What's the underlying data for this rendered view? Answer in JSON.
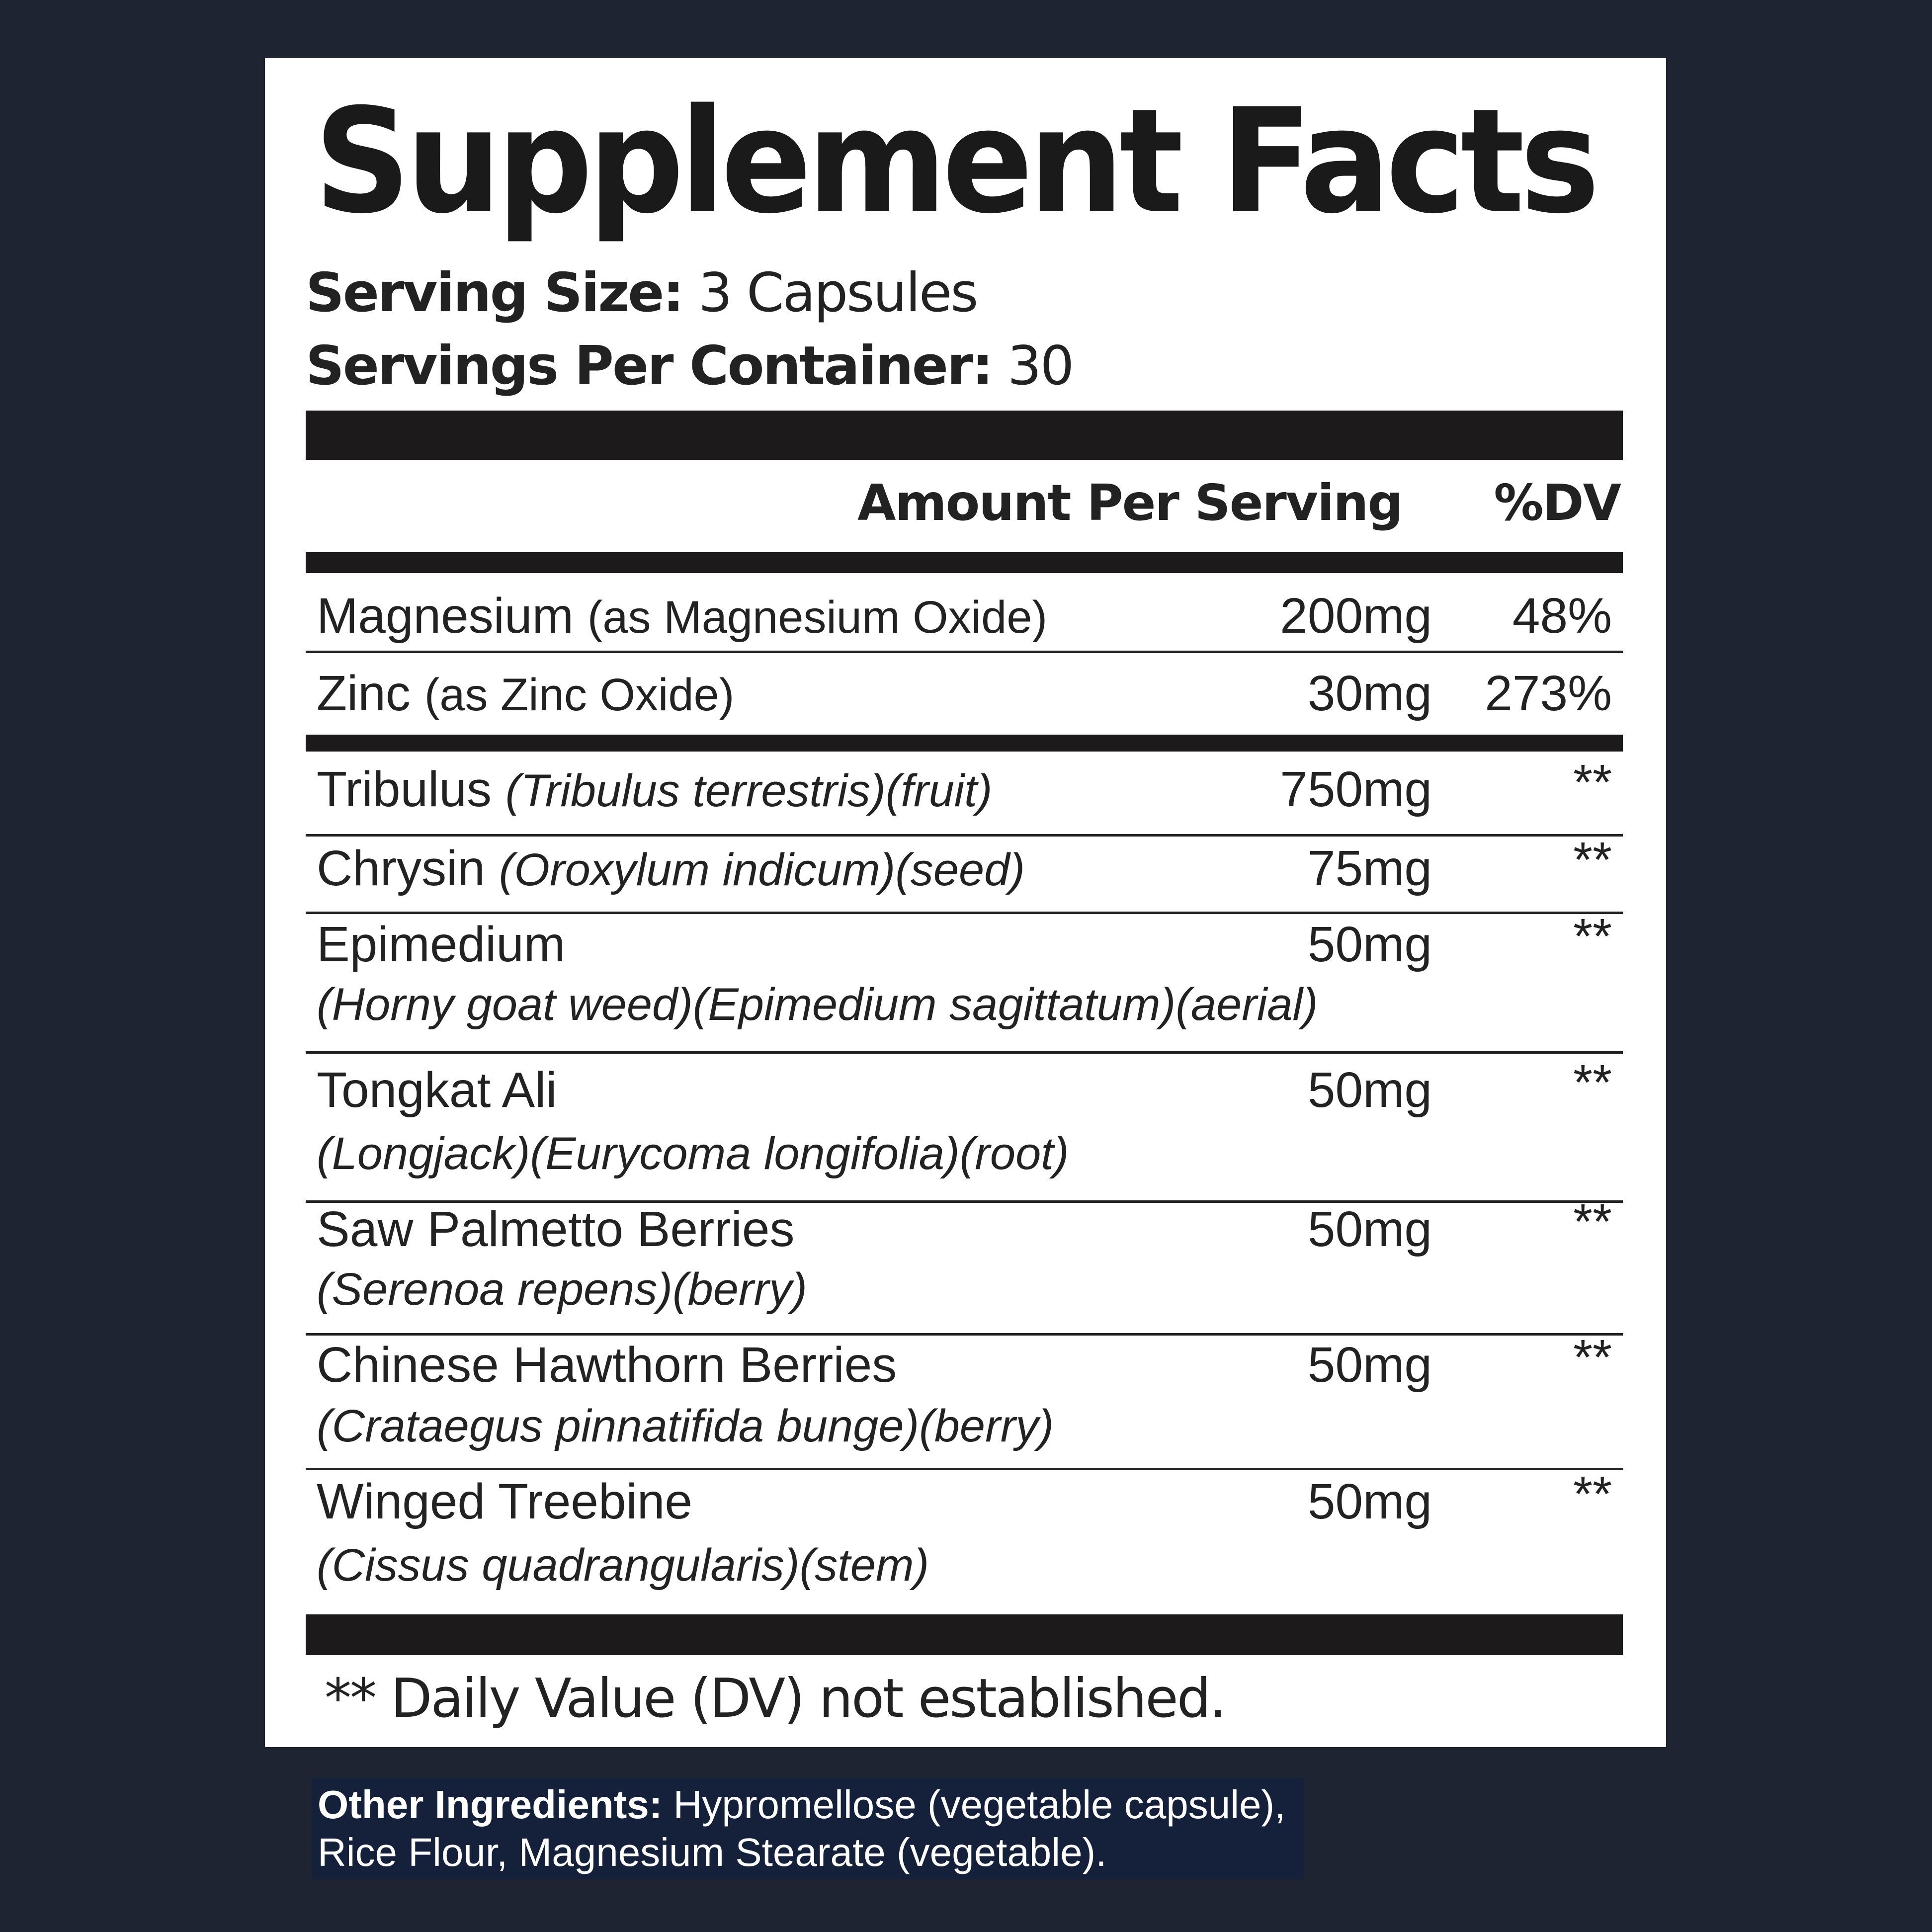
{
  "title": "Supplement Facts",
  "serving_size": {
    "label": "Serving Size:",
    "value": "3 Capsules"
  },
  "servings_per_container": {
    "label": "Servings Per Container:",
    "value": "30"
  },
  "header": {
    "amount": "Amount Per Serving",
    "dv": "%DV"
  },
  "rows": [
    {
      "name": "Magnesium",
      "detail": "(as Magnesium Oxide)",
      "amount": "200mg",
      "dv": "48%"
    },
    {
      "name": "Zinc",
      "detail": "(as Zinc Oxide)",
      "amount": "30mg",
      "dv": "273%"
    },
    {
      "name": "Tribulus",
      "detail": "(Tribulus terrestris)(fruit)",
      "amount": "750mg",
      "dv": "**"
    },
    {
      "name": "Chrysin",
      "detail": "(Oroxylum indicum)(seed)",
      "amount": "75mg",
      "dv": "**"
    },
    {
      "name": "Epimedium",
      "detail": "(Horny goat weed)(Epimedium sagittatum)(aerial)",
      "amount": "50mg",
      "dv": "**"
    },
    {
      "name": "Tongkat Ali",
      "detail": "(Longjack)(Eurycoma longifolia)(root)",
      "amount": "50mg",
      "dv": "**"
    },
    {
      "name": "Saw Palmetto Berries",
      "detail": "(Serenoa repens)(berry)",
      "amount": "50mg",
      "dv": "**"
    },
    {
      "name": "Chinese Hawthorn Berries",
      "detail": "(Crataegus pinnatifida bunge)(berry)",
      "amount": "50mg",
      "dv": "**"
    },
    {
      "name": "Winged Treebine",
      "detail": "(Cissus quadrangularis)(stem)",
      "amount": "50mg",
      "dv": "**"
    }
  ],
  "footnote": "** Daily Value (DV) not established.",
  "other_ingredients": {
    "label": "Other Ingredients:",
    "line1": "Hypromellose (vegetable capsule),",
    "line2": "Rice Flour, Magnesium Stearate (vegetable)."
  }
}
